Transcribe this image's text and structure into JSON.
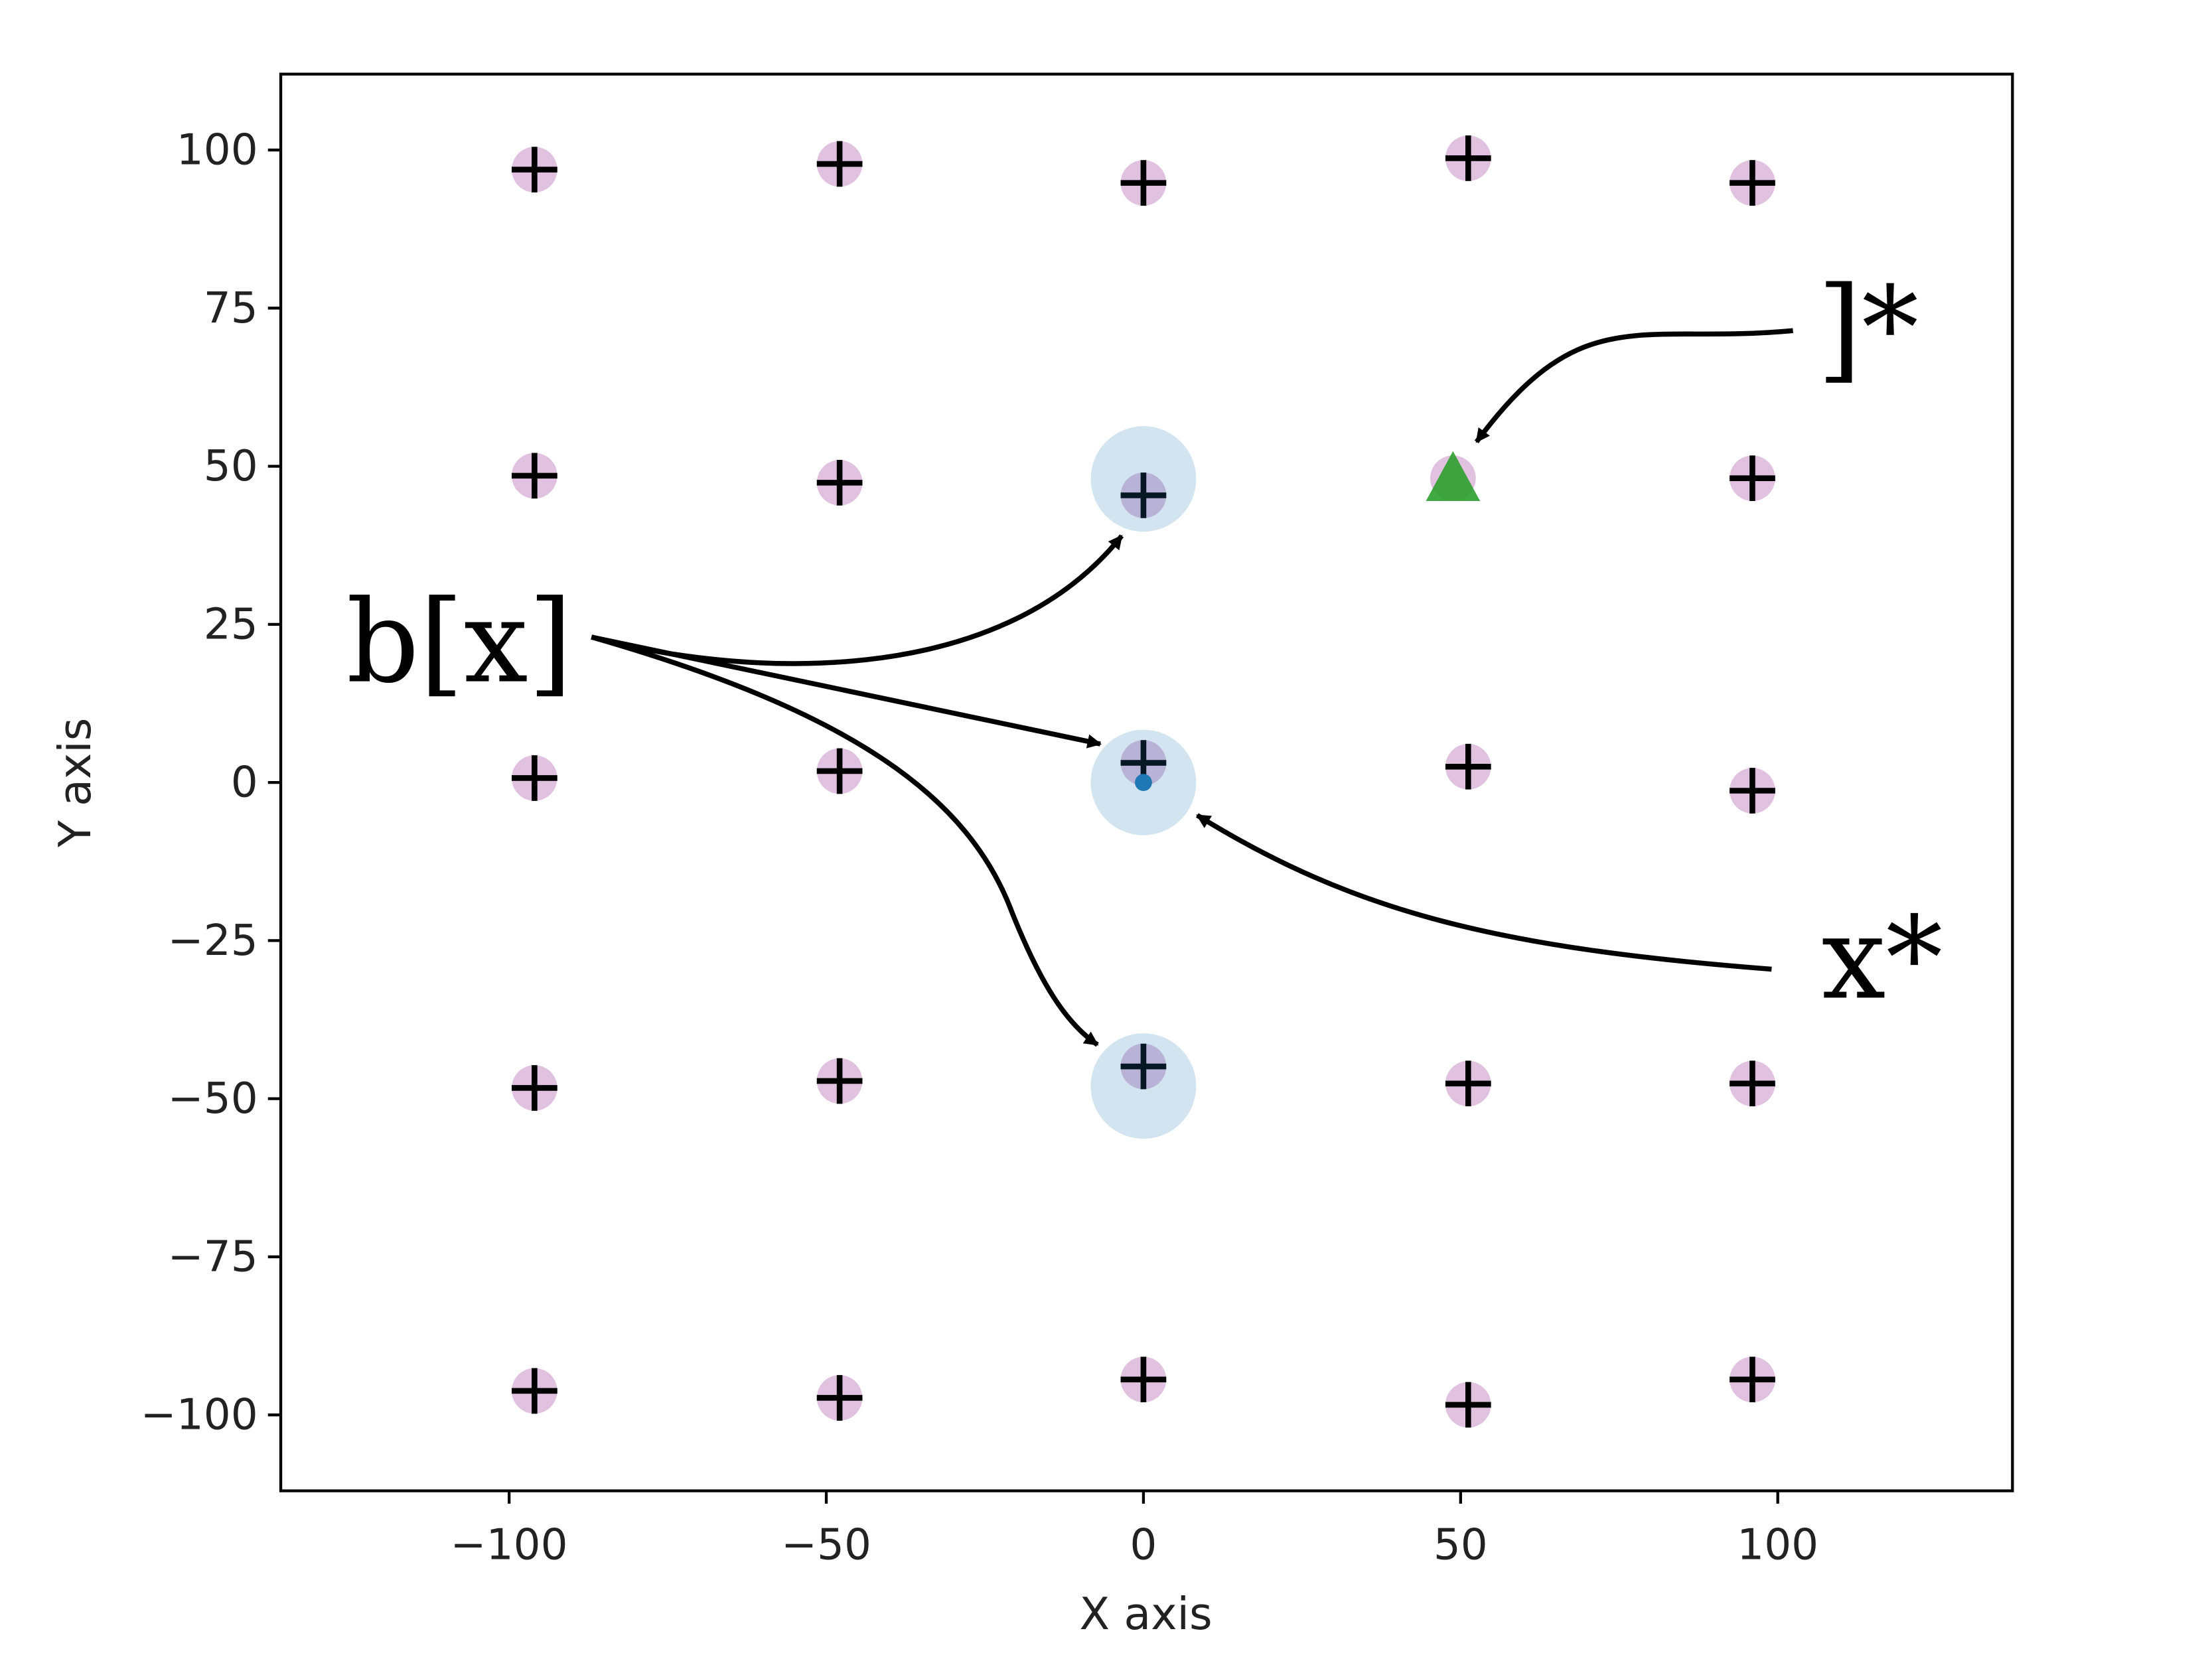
{
  "chart_data": {
    "type": "scatter",
    "xlabel": "X axis",
    "ylabel": "Y axis",
    "xlim": [
      -136,
      137
    ],
    "ylim": [
      -112,
      112
    ],
    "xticks": [
      {
        "value": -100,
        "label": "−100"
      },
      {
        "value": -50,
        "label": "−50"
      },
      0,
      50,
      100
    ],
    "yticks": [
      {
        "value": -100,
        "label": "−100"
      },
      {
        "value": -75,
        "label": "−75"
      },
      {
        "value": -50,
        "label": "−50"
      },
      {
        "value": -25,
        "label": "−25"
      },
      0,
      25,
      50,
      75,
      100
    ],
    "series": [
      {
        "marker": "plus",
        "color": "#000000",
        "marker_fill": "#c78ec7",
        "x": [
          -96,
          -47.9,
          0,
          51.2,
          96,
          -96,
          -47.9,
          0,
          96,
          -96,
          -47.9,
          0,
          51.2,
          96,
          -96,
          -47.9,
          0,
          51.2,
          96,
          -96,
          -47.9,
          0,
          51.2,
          96
        ],
        "values": [
          96.9,
          97.8,
          94.8,
          98.7,
          94.8,
          48.5,
          47.4,
          45.4,
          48.1,
          0.7,
          1.8,
          3.1,
          2.5,
          -1.3,
          -48.3,
          -47.2,
          -44.9,
          -47.6,
          -47.6,
          -96.2,
          -97.3,
          -94.4,
          -98.4,
          -94.4
        ]
      },
      {
        "marker": "big-circle",
        "color": "#1f77b4",
        "x": [
          0,
          0,
          0
        ],
        "values": [
          48,
          0,
          -48
        ]
      },
      {
        "marker": "dot",
        "color": "#1f77b4",
        "x": [
          0
        ],
        "values": [
          0
        ]
      },
      {
        "marker": "triangle",
        "color": "#2ca02c",
        "marker_fill": "#c78ec7",
        "x": [
          48.8
        ],
        "values": [
          48.1
        ]
      }
    ],
    "annotations": [
      {
        "text": "b[x]"
      },
      {
        "text": "]*"
      },
      {
        "text": "x*"
      }
    ]
  }
}
